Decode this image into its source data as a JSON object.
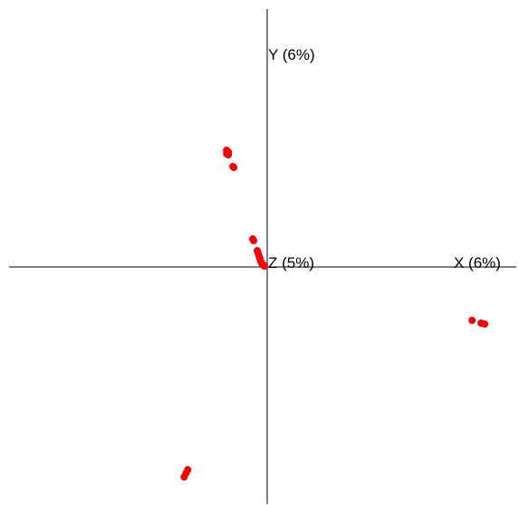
{
  "chart_data": {
    "type": "scatter",
    "title": "",
    "axis_labels": {
      "x": "X (6%)",
      "y": "Y (6%)",
      "z": "Z (5%)"
    },
    "xlim": [
      -290,
      280
    ],
    "ylim": [
      -262,
      285
    ],
    "grid": false,
    "legend": "none",
    "point_color": "#ff0000",
    "points": [
      {
        "x": -44,
        "y": 129
      },
      {
        "x": -42,
        "y": 127
      },
      {
        "x": -44,
        "y": 125
      },
      {
        "x": -42,
        "y": 124
      },
      {
        "x": -37,
        "y": 111
      },
      {
        "x": -36,
        "y": 110
      },
      {
        "x": -15,
        "y": 31
      },
      {
        "x": -14,
        "y": 29
      },
      {
        "x": -10,
        "y": 18
      },
      {
        "x": -9,
        "y": 15
      },
      {
        "x": -8,
        "y": 12
      },
      {
        "x": -7,
        "y": 9
      },
      {
        "x": -6,
        "y": 6
      },
      {
        "x": -5,
        "y": 4
      },
      {
        "x": -3,
        "y": 2
      },
      {
        "x": -2,
        "y": 1
      },
      {
        "x": 228,
        "y": -59
      },
      {
        "x": 238,
        "y": -62
      },
      {
        "x": 242,
        "y": -63
      },
      {
        "x": -87,
        "y": -224
      },
      {
        "x": -89,
        "y": -228
      },
      {
        "x": -91,
        "y": -232
      }
    ]
  }
}
